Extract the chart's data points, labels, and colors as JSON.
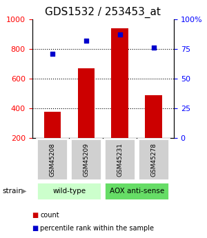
{
  "title": "GDS1532 / 253453_at",
  "samples": [
    "GSM45208",
    "GSM45209",
    "GSM45231",
    "GSM45278"
  ],
  "bar_values": [
    375,
    670,
    940,
    490
  ],
  "percentile_values": [
    71,
    82,
    87,
    76
  ],
  "bar_color": "#cc0000",
  "percentile_color": "#0000cc",
  "ylim_left": [
    200,
    1000
  ],
  "ylim_right": [
    0,
    100
  ],
  "yticks_left": [
    200,
    400,
    600,
    800,
    1000
  ],
  "yticks_right": [
    0,
    25,
    50,
    75,
    100
  ],
  "yticklabels_right": [
    "0",
    "25",
    "50",
    "75",
    "100%"
  ],
  "grid_values": [
    400,
    600,
    800
  ],
  "strain_groups": [
    {
      "label": "wild-type",
      "indices": [
        0,
        1
      ],
      "color": "#ccffcc"
    },
    {
      "label": "AOX anti-sense",
      "indices": [
        2,
        3
      ],
      "color": "#66dd66"
    }
  ],
  "strain_label": "strain",
  "legend_count_label": "count",
  "legend_pct_label": "percentile rank within the sample",
  "bg_color": "#ffffff",
  "sample_box_color": "#d0d0d0",
  "title_fontsize": 11,
  "tick_fontsize": 8
}
